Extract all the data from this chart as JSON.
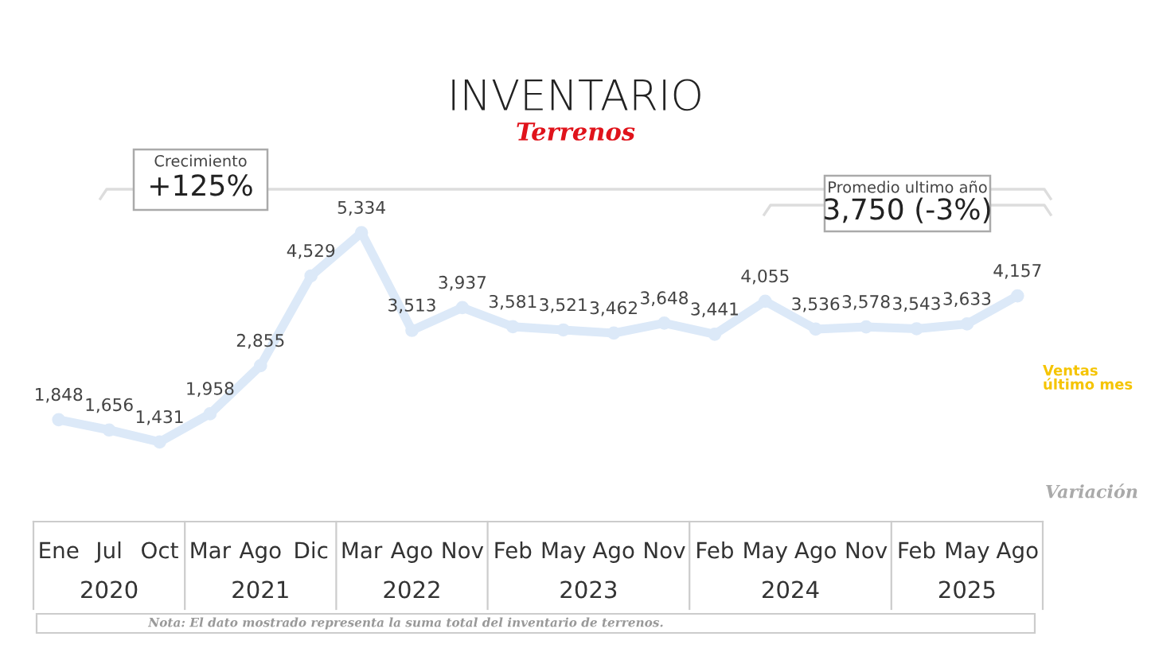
{
  "chart_data": {
    "type": "line",
    "title": "INVENTARIO",
    "subtitle": "Terrenos",
    "categories": [
      "Ene",
      "Jul",
      "Oct",
      "Mar",
      "Ago",
      "Dic",
      "Mar",
      "Ago",
      "Nov",
      "Feb",
      "May",
      "Ago",
      "Nov",
      "Feb",
      "May",
      "Ago",
      "Nov",
      "Feb",
      "May",
      "Ago"
    ],
    "series": [
      {
        "color": "#dce9f8",
        "values": [
          1848,
          1656,
          1431,
          1958,
          2855,
          4529,
          5334,
          3513,
          3937,
          3581,
          3521,
          3462,
          3648,
          3441,
          4055,
          3536,
          3578,
          3543,
          3633,
          4157
        ],
        "marker": "circle",
        "line_style": "solid",
        "value_labels": [
          "1,848",
          "1,656",
          "1,431",
          "1,958",
          "2,855",
          "4,529",
          "5,334",
          "3,513",
          "3,937",
          "3,581",
          "3,521",
          "3,462",
          "3,648",
          "3,441",
          "4,055",
          "3,536",
          "3,578",
          "3,543",
          "3,633",
          "4,157"
        ]
      }
    ],
    "grid": false,
    "legend": false,
    "tick_labels": "x",
    "annotations": [
      "2020",
      "2021",
      "2022",
      "2023",
      "2024",
      "2025",
      "Crecimiento",
      "+125%",
      "Promedio ultimo año",
      "3,750 (-3%)",
      "Ventas último mes",
      "Variación",
      "Nota: El dato mostrado representa la suma total del inventario de terrenos."
    ]
  }
}
